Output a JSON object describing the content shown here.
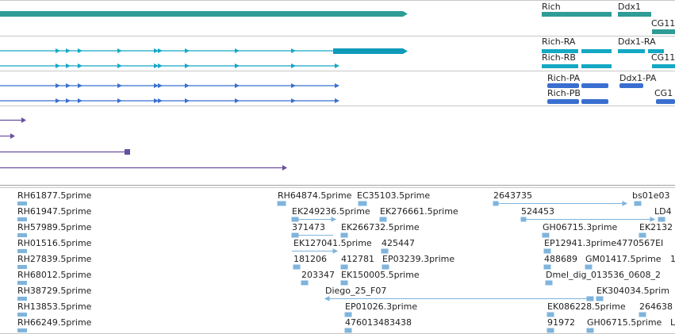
{
  "colors": {
    "gene": "#2f9c95",
    "transcript": "#14a8c4",
    "transcript_dark": "#0f9bb8",
    "protein": "#3a6fd0",
    "purple": "#6a4fa0",
    "est": "#7fb4dc",
    "border": "#c8c8c8"
  },
  "icons": {
    "feature_arrow": "triangle-glyph",
    "est_marker": "est-block-icon"
  },
  "gene_track": {
    "labels": [
      "Rich",
      "Ddx1",
      "CG11"
    ]
  },
  "transcript_track": {
    "labels": [
      "Rich-RA",
      "Ddx1-RA",
      "Rich-RB",
      "CG11"
    ]
  },
  "protein_track": {
    "labels": [
      "Rich-PA",
      "Ddx1-PA",
      "Rich-PB",
      "CG1"
    ]
  },
  "est_track": {
    "left_column": [
      "RH61877.5prime",
      "RH61947.5prime",
      "RH57989.5prime",
      "RH01516.5prime",
      "RH27839.5prime",
      "RH68012.5prime",
      "RH38729.5prime",
      "RH13853.5prime",
      "RH66249.5prime"
    ],
    "mid_labels": [
      "RH64874.5prime",
      "EC35103.5prime",
      "EK249236.5prime",
      "EK276661.5prime",
      "371473",
      "EK266732.5prime",
      "EK127041.5prime",
      "425447",
      "181206",
      "412781",
      "EP03239.3prime",
      "203347",
      "EK150005.5prime",
      "Diego_25_F07",
      "EP01026.3prime",
      "476013483438"
    ],
    "right_labels": [
      "2643735",
      "bs01e03",
      "524453",
      "LD4",
      "GH06715.3prime",
      "EK2132",
      "EP12941.3prime4770567EI",
      "488689",
      "GM01417.5prime",
      "1",
      "Dmel_dig_013536_0608_2",
      "EK304034.5prim",
      "EK086228.5prime",
      "264638",
      "91972",
      "GH06715.5prime",
      "L"
    ]
  }
}
